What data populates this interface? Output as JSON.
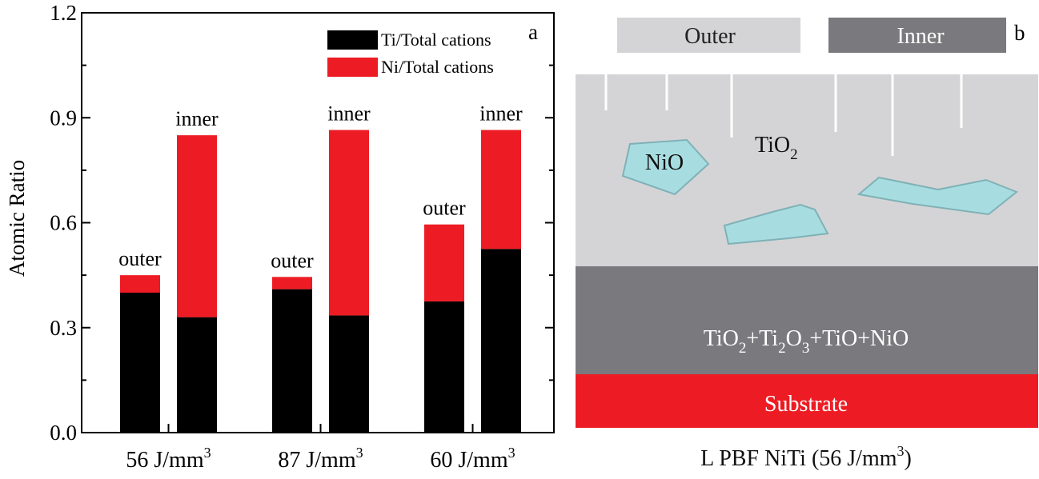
{
  "chart_data": {
    "type": "bar",
    "stacked": true,
    "panel_label": "a",
    "ylabel": "Atomic Ratio",
    "ylim": [
      0,
      1.2
    ],
    "yticks": [
      "0.0",
      "0.3",
      "0.6",
      "0.9",
      "1.2"
    ],
    "categories": [
      {
        "label": "56 J/mm",
        "sup": "3"
      },
      {
        "label": "87 J/mm",
        "sup": "3"
      },
      {
        "label": "60 J/mm",
        "sup": "3"
      }
    ],
    "bar_labels": [
      "outer",
      "inner"
    ],
    "series": [
      {
        "name": "Ti/Total cations",
        "color": "#000000",
        "outer": [
          0.4,
          0.41,
          0.375
        ],
        "inner": [
          0.33,
          0.335,
          0.525
        ]
      },
      {
        "name": "Ni/Total cations",
        "color": "#ed1c24",
        "outer": [
          0.05,
          0.035,
          0.22
        ],
        "inner": [
          0.52,
          0.53,
          0.34
        ]
      }
    ],
    "legend_position": "top-right"
  },
  "diagram": {
    "panel_label": "b",
    "legend_outer": "Outer",
    "legend_inner": "Inner",
    "colors": {
      "outer": "#d4d4d6",
      "inner": "#7a797d",
      "substrate": "#ed1c24",
      "nio": "#a7dde1"
    },
    "nio_label": "NiO",
    "tio2_label": {
      "base": "TiO",
      "sub": "2"
    },
    "inner_layer": {
      "parts": [
        {
          "t": "TiO"
        },
        {
          "sub": "2"
        },
        {
          "t": "+Ti"
        },
        {
          "sub": "2"
        },
        {
          "t": "O"
        },
        {
          "sub": "3"
        },
        {
          "t": "+TiO+NiO"
        }
      ]
    },
    "substrate_label": "Substrate",
    "caption": {
      "base": "L PBF NiTi (56 J/mm",
      "sup": "3",
      "end": ")"
    }
  }
}
